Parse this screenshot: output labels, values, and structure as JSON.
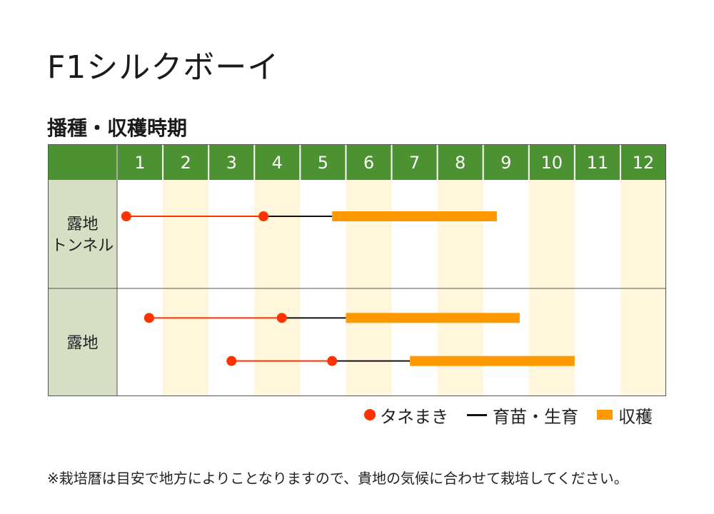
{
  "title": "F1シルクボーイ",
  "subtitle": "播種・収穫時期",
  "legend": {
    "sowing": "タネまき",
    "growing": "育苗・生育",
    "harvest": "収穫"
  },
  "note": "※栽培暦は目安で地方によりことなりますので、貴地の気候に合わせて栽培してください。",
  "colors": {
    "header_green": "#4c9232",
    "label_bg": "#d6dfc4",
    "alt_month_bg": "#fff6dc",
    "sowing_red": "#ff3300",
    "growing_black": "#111111",
    "harvest_orange": "#ff9900"
  },
  "chart_data": {
    "type": "gantt",
    "months": [
      "1",
      "2",
      "3",
      "4",
      "5",
      "6",
      "7",
      "8",
      "9",
      "10",
      "11",
      "12"
    ],
    "x_unit": "month",
    "rows": [
      {
        "label_lines": [
          "露地",
          "トンネル"
        ],
        "series": [
          {
            "sowing_start": 1.2,
            "sowing_end": 4.2,
            "growing_end": 5.7,
            "harvest_end": 9.3
          }
        ]
      },
      {
        "label_lines": [
          "露地"
        ],
        "series": [
          {
            "sowing_start": 1.7,
            "sowing_end": 4.6,
            "growing_end": 6.0,
            "harvest_end": 9.8
          },
          {
            "sowing_start": 3.5,
            "sowing_end": 5.7,
            "growing_end": 7.4,
            "harvest_end": 11.0
          }
        ]
      }
    ]
  }
}
